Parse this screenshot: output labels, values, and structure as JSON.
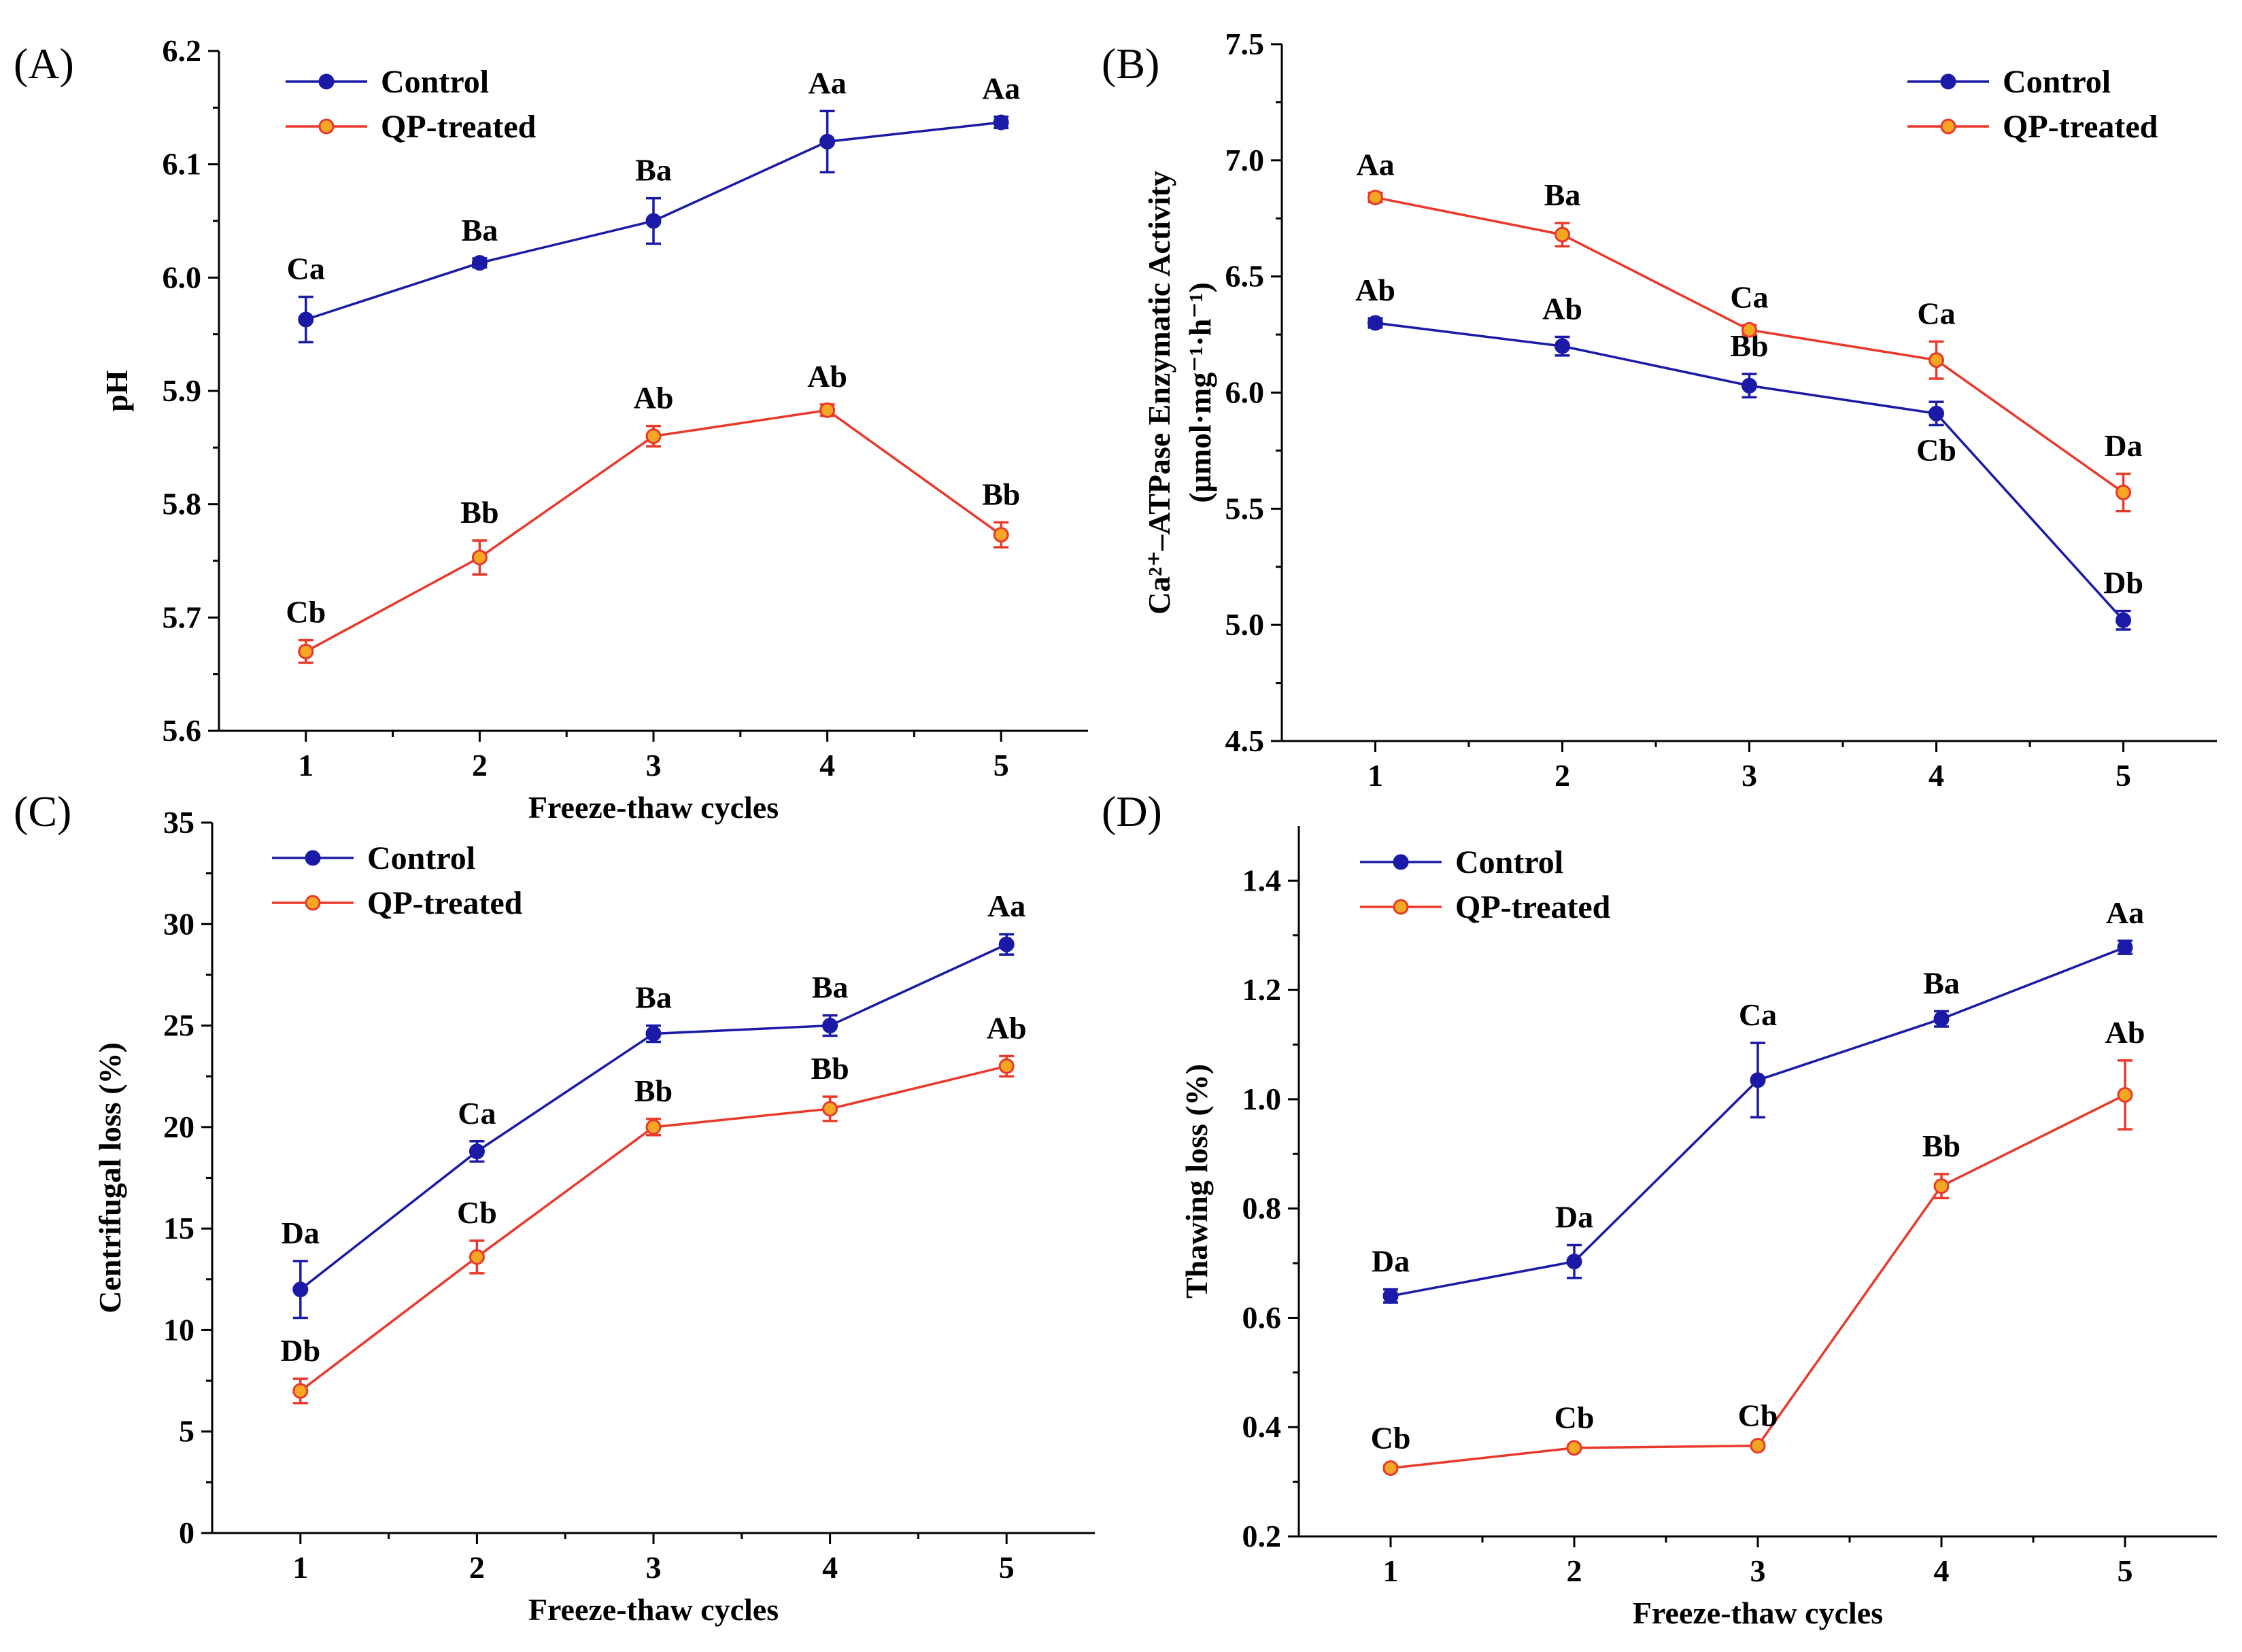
{
  "figure": {
    "panels": [
      "A",
      "B",
      "C",
      "D"
    ]
  },
  "colors": {
    "control": "#1a1aa6",
    "qp": "#e8392b",
    "qp_marker": "#f5a623"
  },
  "chart_data": [
    {
      "id": "A",
      "type": "line",
      "panel_label": "(A)",
      "xlabel": "Freeze-thaw cycles",
      "ylabel": "pH",
      "ylabel_sub": "",
      "x": [
        1,
        2,
        3,
        4,
        5
      ],
      "xticks": [
        "1",
        "2",
        "3",
        "4",
        "5"
      ],
      "ylim": [
        5.6,
        6.2
      ],
      "yticks": [
        "5.6",
        "5.7",
        "5.8",
        "5.9",
        "6.0",
        "6.1",
        "6.2"
      ],
      "legend_position": "top-left",
      "series": [
        {
          "name": "Control",
          "color": "#1a1aa6",
          "marker": "#1a1aa6",
          "values": [
            5.963,
            6.013,
            6.05,
            6.12,
            6.137
          ],
          "errors": [
            0.02,
            0.004,
            0.02,
            0.027,
            0.005
          ],
          "labels": [
            "Ca",
            "Ba",
            "Ba",
            "Aa",
            "Aa"
          ]
        },
        {
          "name": "QP-treated",
          "color": "#e8392b",
          "marker": "#f5a623",
          "values": [
            5.67,
            5.753,
            5.86,
            5.883,
            5.773
          ],
          "errors": [
            0.01,
            0.015,
            0.009,
            0.005,
            0.011
          ],
          "labels": [
            "Cb",
            "Bb",
            "Ab",
            "Ab",
            "Bb"
          ]
        }
      ]
    },
    {
      "id": "B",
      "type": "line",
      "panel_label": "(B)",
      "xlabel": "",
      "ylabel": "Ca²⁺–ATPase Enzymatic Activity",
      "ylabel_sub": "(μmol·mg⁻¹·h⁻¹)",
      "x": [
        1,
        2,
        3,
        4,
        5
      ],
      "xticks": [
        "1",
        "2",
        "3",
        "4",
        "5"
      ],
      "ylim": [
        4.5,
        7.5
      ],
      "yticks": [
        "4.5",
        "5.0",
        "5.5",
        "6.0",
        "6.5",
        "7.0",
        "7.5"
      ],
      "legend_position": "top-right",
      "series": [
        {
          "name": "Control",
          "color": "#1a1aa6",
          "marker": "#1a1aa6",
          "values": [
            6.3,
            6.2,
            6.03,
            5.91,
            5.02
          ],
          "errors": [
            0.02,
            0.04,
            0.05,
            0.05,
            0.04
          ],
          "labels": [
            "Ab",
            "Ab",
            "Bb",
            "Cb",
            "Db"
          ],
          "label_pos": [
            "above",
            "above",
            "above",
            "below",
            "above"
          ]
        },
        {
          "name": "QP-treated",
          "color": "#e8392b",
          "marker": "#f5a623",
          "values": [
            6.84,
            6.68,
            6.27,
            6.14,
            5.57
          ],
          "errors": [
            0.02,
            0.05,
            0.02,
            0.08,
            0.08
          ],
          "labels": [
            "Aa",
            "Ba",
            "Ca",
            "Ca",
            "Da"
          ]
        }
      ]
    },
    {
      "id": "C",
      "type": "line",
      "panel_label": "(C)",
      "xlabel": "Freeze-thaw cycles",
      "ylabel": "Centrifugal loss (%)",
      "ylabel_sub": "",
      "x": [
        1,
        2,
        3,
        4,
        5
      ],
      "xticks": [
        "1",
        "2",
        "3",
        "4",
        "5"
      ],
      "ylim": [
        0,
        35
      ],
      "yticks": [
        "0",
        "5",
        "10",
        "15",
        "20",
        "25",
        "30",
        "35"
      ],
      "legend_position": "top-left",
      "series": [
        {
          "name": "Control",
          "color": "#1a1aa6",
          "marker": "#1a1aa6",
          "values": [
            12.0,
            18.8,
            24.6,
            25.0,
            29.0
          ],
          "errors": [
            1.4,
            0.5,
            0.4,
            0.5,
            0.5
          ],
          "labels": [
            "Da",
            "Ca",
            "Ba",
            "Ba",
            "Aa"
          ]
        },
        {
          "name": "QP-treated",
          "color": "#e8392b",
          "marker": "#f5a623",
          "values": [
            7.0,
            13.6,
            20.0,
            20.9,
            23.0
          ],
          "errors": [
            0.6,
            0.8,
            0.4,
            0.6,
            0.5
          ],
          "labels": [
            "Db",
            "Cb",
            "Bb",
            "Bb",
            "Ab"
          ]
        }
      ]
    },
    {
      "id": "D",
      "type": "line",
      "panel_label": "(D)",
      "xlabel": "Freeze-thaw cycles",
      "ylabel": "Thawing loss (%)",
      "ylabel_sub": "",
      "x": [
        1,
        2,
        3,
        4,
        5
      ],
      "xticks": [
        "1",
        "2",
        "3",
        "4",
        "5"
      ],
      "ylim": [
        0.2,
        1.5
      ],
      "yticks": [
        "0.2",
        "0.4",
        "0.6",
        "0.8",
        "1.0",
        "1.2",
        "1.4"
      ],
      "legend_position": "top-left",
      "series": [
        {
          "name": "Control",
          "color": "#1a1aa6",
          "marker": "#1a1aa6",
          "values": [
            0.64,
            0.703,
            1.035,
            1.147,
            1.278
          ],
          "errors": [
            0.012,
            0.03,
            0.068,
            0.014,
            0.012
          ],
          "labels": [
            "Da",
            "Da",
            "Ca",
            "Ba",
            "Aa"
          ]
        },
        {
          "name": "QP-treated",
          "color": "#e8392b",
          "marker": "#f5a623",
          "values": [
            0.325,
            0.362,
            0.366,
            0.841,
            1.008
          ],
          "errors": [
            0.004,
            0.004,
            0.004,
            0.022,
            0.063
          ],
          "labels": [
            "Cb",
            "Cb",
            "Cb",
            "Bb",
            "Ab"
          ]
        }
      ]
    }
  ]
}
